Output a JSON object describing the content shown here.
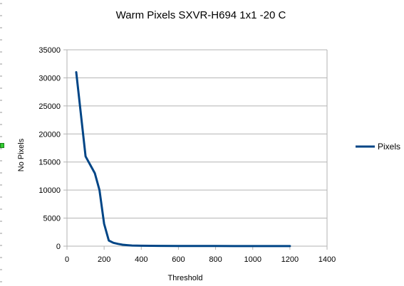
{
  "chart_data": {
    "type": "line",
    "title": "Warm Pixels SXVR-H694 1x1 -20 C",
    "xlabel": "Threshold",
    "ylabel": "No Pixels",
    "xlim": [
      0,
      1400
    ],
    "ylim": [
      0,
      35000
    ],
    "x_ticks": [
      0,
      200,
      400,
      600,
      800,
      1000,
      1200,
      1400
    ],
    "y_ticks": [
      0,
      5000,
      10000,
      15000,
      20000,
      25000,
      30000,
      35000
    ],
    "grid": "horizontal",
    "legend": "right",
    "series": [
      {
        "name": "Pixels",
        "color": "#004586",
        "x": [
          50,
          100,
          150,
          175,
          200,
          225,
          250,
          275,
          300,
          325,
          350,
          400,
          450,
          500,
          600,
          700,
          800,
          900,
          1000,
          1100,
          1200
        ],
        "y": [
          31000,
          16000,
          13000,
          10000,
          4000,
          1000,
          600,
          400,
          250,
          180,
          120,
          80,
          60,
          45,
          30,
          25,
          20,
          15,
          12,
          10,
          8
        ]
      }
    ]
  },
  "colors": {
    "gridline": "#b3b3b3",
    "axis": "#b3b3b3",
    "series": "#004586",
    "handle": "#33cc33"
  }
}
